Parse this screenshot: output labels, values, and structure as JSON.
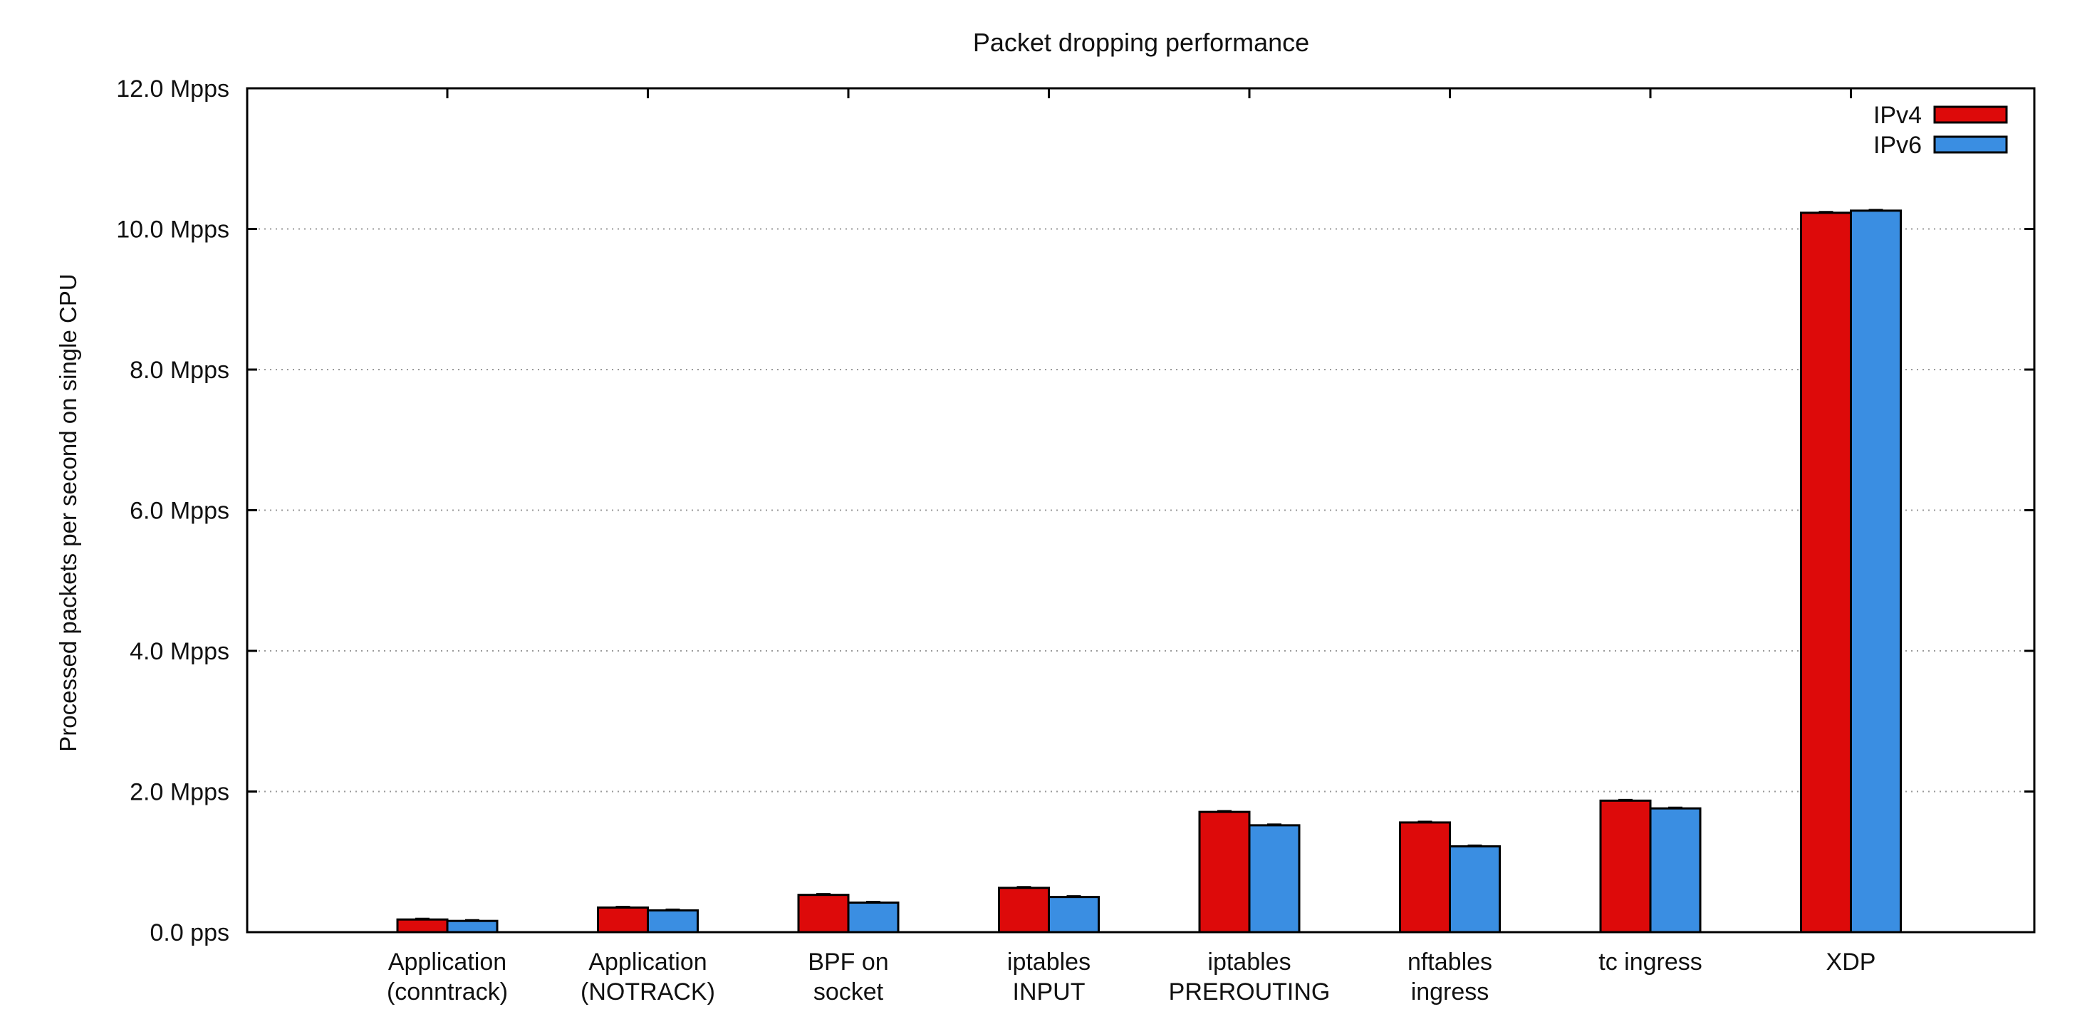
{
  "chart_data": {
    "type": "bar",
    "title": "Packet dropping performance",
    "xlabel": "",
    "ylabel": "Processed packets per second on single CPU",
    "ylim": [
      0,
      12
    ],
    "y_unit": "Mpps",
    "y_ticks": [
      {
        "value": 0,
        "label": "0.0  pps"
      },
      {
        "value": 2,
        "label": "2.0 Mpps"
      },
      {
        "value": 4,
        "label": "4.0 Mpps"
      },
      {
        "value": 6,
        "label": "6.0 Mpps"
      },
      {
        "value": 8,
        "label": "8.0 Mpps"
      },
      {
        "value": 10,
        "label": "10.0 Mpps"
      },
      {
        "value": 12,
        "label": "12.0 Mpps"
      }
    ],
    "categories": [
      [
        "Application",
        "(conntrack)"
      ],
      [
        "Application",
        "(NOTRACK)"
      ],
      [
        "BPF on",
        "socket"
      ],
      [
        "iptables",
        "INPUT"
      ],
      [
        "iptables",
        "PREROUTING"
      ],
      [
        "nftables",
        "ingress"
      ],
      [
        "tc ingress"
      ],
      [
        "XDP"
      ]
    ],
    "series": [
      {
        "name": "IPv4",
        "color": "#dd0a0a",
        "values": [
          0.18,
          0.35,
          0.53,
          0.63,
          1.71,
          1.56,
          1.87,
          10.23
        ]
      },
      {
        "name": "IPv6",
        "color": "#3a8ee2",
        "values": [
          0.16,
          0.31,
          0.42,
          0.5,
          1.52,
          1.22,
          1.76,
          10.26
        ]
      }
    ],
    "grid": "horizontal dotted",
    "legend_position": "top-right",
    "error_bars": true
  }
}
